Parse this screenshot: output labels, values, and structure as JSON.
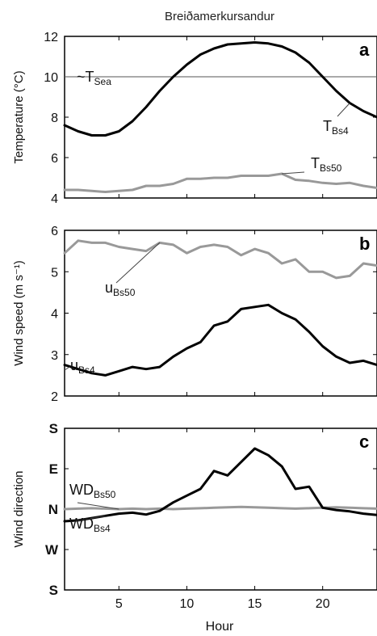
{
  "figure": {
    "title": "Breiðamerkursandur",
    "xlabel": "Hour"
  },
  "chart_data": [
    {
      "type": "line",
      "panel_label": "a",
      "ylabel": "Temperature (°C)",
      "xlim": [
        1,
        24
      ],
      "ylim": [
        4,
        12
      ],
      "yticks": [
        "4",
        "6",
        "8",
        "10",
        "12"
      ],
      "xticks": [
        5,
        10,
        15,
        20
      ],
      "grid": false,
      "reference_line": {
        "y": 10,
        "label_main": "~T",
        "label_sub": "Sea"
      },
      "series": [
        {
          "name": "TBs4",
          "label_main": "T",
          "label_sub": "Bs4",
          "color": "#000000",
          "x": [
            1,
            2,
            3,
            4,
            5,
            6,
            7,
            8,
            9,
            10,
            11,
            12,
            13,
            14,
            15,
            16,
            17,
            18,
            19,
            20,
            21,
            22,
            23,
            24
          ],
          "y": [
            7.6,
            7.3,
            7.1,
            7.1,
            7.3,
            7.8,
            8.5,
            9.3,
            10.0,
            10.6,
            11.1,
            11.4,
            11.6,
            11.65,
            11.7,
            11.65,
            11.5,
            11.2,
            10.7,
            10.0,
            9.3,
            8.7,
            8.3,
            8.0
          ]
        },
        {
          "name": "TBs50",
          "label_main": "T",
          "label_sub": "Bs50",
          "color": "#999999",
          "x": [
            1,
            2,
            3,
            4,
            5,
            6,
            7,
            8,
            9,
            10,
            11,
            12,
            13,
            14,
            15,
            16,
            17,
            18,
            19,
            20,
            21,
            22,
            23,
            24
          ],
          "y": [
            4.4,
            4.4,
            4.35,
            4.3,
            4.35,
            4.4,
            4.6,
            4.6,
            4.7,
            4.95,
            4.95,
            5.0,
            5.0,
            5.1,
            5.1,
            5.1,
            5.2,
            4.9,
            4.85,
            4.75,
            4.7,
            4.75,
            4.6,
            4.5
          ]
        }
      ]
    },
    {
      "type": "line",
      "panel_label": "b",
      "ylabel": "Wind speed (m s⁻¹)",
      "xlim": [
        1,
        24
      ],
      "ylim": [
        2,
        6
      ],
      "yticks": [
        "2",
        "3",
        "4",
        "5",
        "6"
      ],
      "xticks": [
        5,
        10,
        15,
        20
      ],
      "grid": false,
      "series": [
        {
          "name": "uBs50",
          "label_main": "u",
          "label_sub": "Bs50",
          "color": "#999999",
          "x": [
            1,
            2,
            3,
            4,
            5,
            6,
            7,
            8,
            9,
            10,
            11,
            12,
            13,
            14,
            15,
            16,
            17,
            18,
            19,
            20,
            21,
            22,
            23,
            24
          ],
          "y": [
            5.45,
            5.75,
            5.7,
            5.7,
            5.6,
            5.55,
            5.5,
            5.7,
            5.65,
            5.45,
            5.6,
            5.65,
            5.6,
            5.4,
            5.55,
            5.45,
            5.2,
            5.3,
            5.0,
            5.0,
            4.85,
            4.9,
            5.2,
            5.15
          ]
        },
        {
          "name": "uBs4",
          "label_main": "u",
          "label_sub": "Bs4",
          "color": "#000000",
          "x": [
            1,
            2,
            3,
            4,
            5,
            6,
            7,
            8,
            9,
            10,
            11,
            12,
            13,
            14,
            15,
            16,
            17,
            18,
            19,
            20,
            21,
            22,
            23,
            24
          ],
          "y": [
            2.75,
            2.65,
            2.55,
            2.5,
            2.6,
            2.7,
            2.65,
            2.7,
            2.95,
            3.15,
            3.3,
            3.7,
            3.8,
            4.1,
            4.15,
            4.2,
            4.0,
            3.85,
            3.55,
            3.2,
            2.95,
            2.8,
            2.85,
            2.75
          ]
        }
      ]
    },
    {
      "type": "line",
      "panel_label": "c",
      "ylabel": "Wind direction",
      "xlim": [
        1,
        24
      ],
      "ylim": [
        0,
        360
      ],
      "ytick_values": [
        0,
        90,
        180,
        270,
        360
      ],
      "yticks": [
        "S",
        "W",
        "N",
        "E",
        "S"
      ],
      "xticks": [
        5,
        10,
        15,
        20
      ],
      "grid": false,
      "series": [
        {
          "name": "WDBs50",
          "label_main": "WD",
          "label_sub": "Bs50",
          "color": "#999999",
          "x": [
            1,
            2,
            3,
            4,
            5,
            6,
            7,
            8,
            9,
            10,
            11,
            12,
            13,
            14,
            15,
            16,
            17,
            18,
            19,
            20,
            21,
            22,
            23,
            24
          ],
          "y": [
            180,
            181,
            182,
            181,
            180,
            181,
            180,
            181,
            180,
            181,
            182,
            183,
            184,
            185,
            184,
            183,
            182,
            181,
            182,
            183,
            184,
            183,
            182,
            181
          ]
        },
        {
          "name": "WDBs4",
          "label_main": "WD",
          "label_sub": "Bs4",
          "color": "#000000",
          "x": [
            1,
            2,
            3,
            4,
            5,
            6,
            7,
            8,
            9,
            10,
            11,
            12,
            13,
            14,
            15,
            16,
            17,
            18,
            19,
            20,
            21,
            22,
            23,
            24
          ],
          "y": [
            153,
            155,
            160,
            165,
            170,
            172,
            168,
            176,
            195,
            210,
            225,
            265,
            255,
            285,
            315,
            300,
            275,
            225,
            230,
            183,
            178,
            175,
            170,
            167
          ]
        }
      ]
    }
  ]
}
